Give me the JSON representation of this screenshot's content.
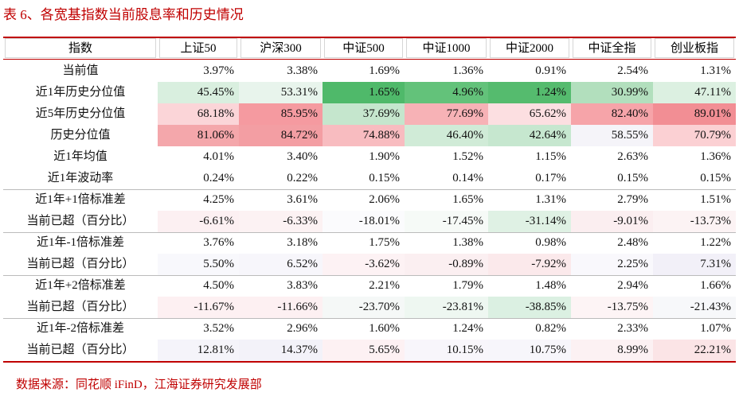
{
  "title": "表 6、各宽基指数当前股息率和历史情况",
  "table": {
    "header": [
      "指数",
      "上证50",
      "沪深300",
      "中证500",
      "中证1000",
      "中证2000",
      "中证全指",
      "创业板指"
    ],
    "rows": [
      [
        "当前值",
        "3.97%",
        "3.38%",
        "1.69%",
        "1.36%",
        "0.91%",
        "2.54%",
        "1.31%"
      ],
      [
        "近1年历史分位值",
        "45.45%",
        "53.31%",
        "1.65%",
        "4.96%",
        "1.24%",
        "30.99%",
        "47.11%"
      ],
      [
        "近5年历史分位值",
        "68.18%",
        "85.95%",
        "37.69%",
        "77.69%",
        "65.62%",
        "82.40%",
        "89.01%"
      ],
      [
        "历史分位值",
        "81.06%",
        "84.72%",
        "74.88%",
        "46.40%",
        "42.64%",
        "58.55%",
        "70.79%"
      ],
      [
        "近1年均值",
        "4.01%",
        "3.40%",
        "1.90%",
        "1.52%",
        "1.15%",
        "2.63%",
        "1.36%"
      ],
      [
        "近1年波动率",
        "0.24%",
        "0.22%",
        "0.15%",
        "0.14%",
        "0.17%",
        "0.15%",
        "0.15%"
      ],
      [
        "近1年+1倍标准差",
        "4.25%",
        "3.61%",
        "2.06%",
        "1.65%",
        "1.31%",
        "2.79%",
        "1.51%"
      ],
      [
        "当前已超（百分比）",
        "-6.61%",
        "-6.33%",
        "-18.01%",
        "-17.45%",
        "-31.14%",
        "-9.01%",
        "-13.73%"
      ],
      [
        "近1年-1倍标准差",
        "3.76%",
        "3.18%",
        "1.75%",
        "1.38%",
        "0.98%",
        "2.48%",
        "1.22%"
      ],
      [
        "当前已超（百分比）",
        "5.50%",
        "6.52%",
        "-3.62%",
        "-0.89%",
        "-7.92%",
        "2.25%",
        "7.31%"
      ],
      [
        "近1年+2倍标准差",
        "4.50%",
        "3.83%",
        "2.21%",
        "1.79%",
        "1.48%",
        "2.94%",
        "1.66%"
      ],
      [
        "当前已超（百分比）",
        "-11.67%",
        "-11.66%",
        "-23.70%",
        "-23.81%",
        "-38.85%",
        "-13.75%",
        "-21.43%"
      ],
      [
        "近1年-2倍标准差",
        "3.52%",
        "2.96%",
        "1.60%",
        "1.24%",
        "0.82%",
        "2.33%",
        "1.07%"
      ],
      [
        "当前已超（百分比）",
        "12.81%",
        "14.37%",
        "5.65%",
        "10.15%",
        "10.75%",
        "8.99%",
        "22.21%"
      ]
    ],
    "cell_colors": [
      null,
      [
        "#d9efdf",
        "#e8f4ec",
        "#4fb96a",
        "#63c27a",
        "#55bb6e",
        "#b2dfbd",
        "#dcf0e1"
      ],
      [
        "#fbd5d8",
        "#f59aa0",
        "#c5e6cd",
        "#f7b2b6",
        "#fcdfe1",
        "#f6a4a9",
        "#f28e94"
      ],
      [
        "#f4a7ab",
        "#f39ea3",
        "#f8bcc0",
        "#d0ebd7",
        "#c6e7cf",
        "#f5f4f9",
        "#fbd0d3"
      ],
      null,
      null,
      null,
      [
        "#fcf0f2",
        "#fcf2f3",
        "#fbfbfd",
        "#f6faf7",
        "#dff1e4",
        "#fbeef0",
        "#fcf3f4"
      ],
      null,
      [
        "#f8f8fc",
        "#f7f6fb",
        "#fdf2f4",
        "#fbeff1",
        "#fbe9eb",
        "#f9f8fc",
        "#f2f0f8"
      ],
      null,
      [
        "#fdf0f2",
        "#fdf0f2",
        "#f5f8f7",
        "#eef7f1",
        "#dbf0e2",
        "#fdf4f5",
        "#f7f8fa"
      ],
      null,
      [
        "#f5f4fa",
        "#f3f2f9",
        "#fdf1f3",
        "#f8f6fb",
        "#f7f6fb",
        "#fcf1f3",
        "#fbe4e6"
      ]
    ]
  },
  "source": "数据来源：同花顺 iFinD，江海证券研究发展部"
}
